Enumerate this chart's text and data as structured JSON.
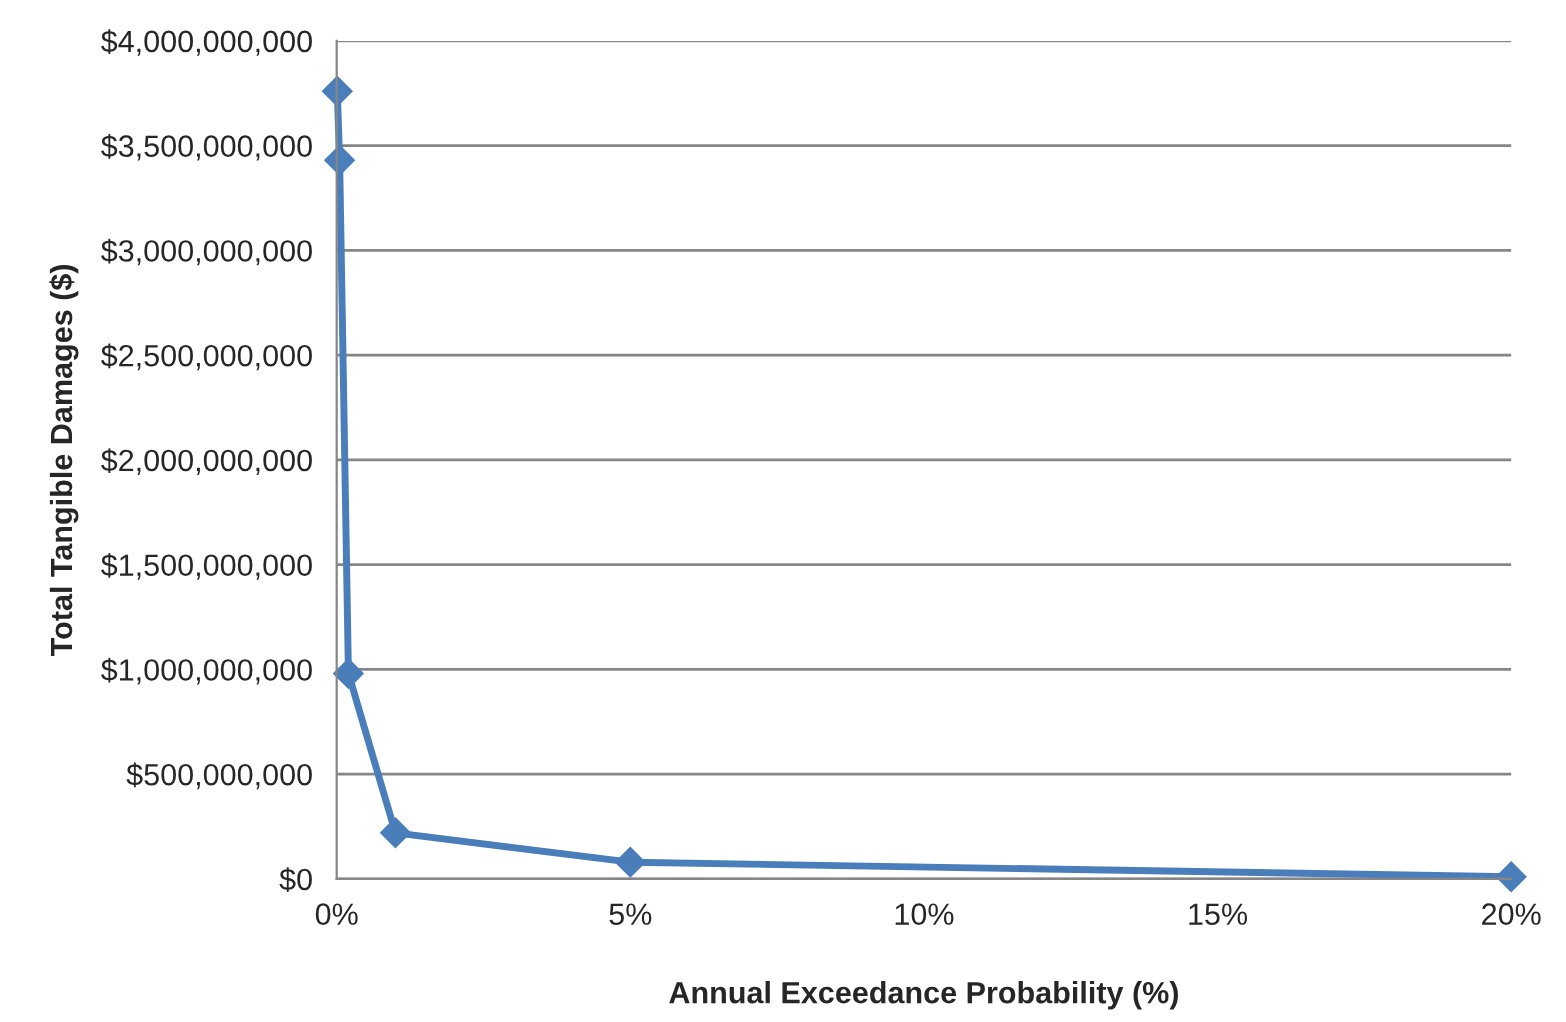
{
  "chart_data": {
    "type": "line",
    "xlabel": "Annual Exceedance Probability (%)",
    "ylabel": "Total Tangible Damages ($)",
    "x": [
      0.01,
      0.05,
      0.2,
      1,
      5,
      20
    ],
    "series": [
      {
        "color": "#4a7ebb",
        "values": [
          3760000000,
          3430000000,
          980000000,
          220000000,
          80000000,
          10000000
        ]
      }
    ],
    "xlim": [
      0,
      20
    ],
    "xticks": [
      {
        "value": 0,
        "label": "0%"
      },
      {
        "value": 5,
        "label": "5%"
      },
      {
        "value": 10,
        "label": "10%"
      },
      {
        "value": 15,
        "label": "15%"
      },
      {
        "value": 20,
        "label": "20%"
      }
    ],
    "ylim": [
      0,
      4000000000
    ],
    "yticks": [
      {
        "value": 0,
        "label": "$0"
      },
      {
        "value": 500000000,
        "label": "$500,000,000"
      },
      {
        "value": 1000000000,
        "label": "$1,000,000,000"
      },
      {
        "value": 1500000000,
        "label": "$1,500,000,000"
      },
      {
        "value": 2000000000,
        "label": "$2,000,000,000"
      },
      {
        "value": 2500000000,
        "label": "$2,500,000,000"
      },
      {
        "value": 3000000000,
        "label": "$3,000,000,000"
      },
      {
        "value": 3500000000,
        "label": "$3,500,000,000"
      },
      {
        "value": 4000000000,
        "label": "$4,000,000,000"
      }
    ],
    "grid": "y",
    "marker": "diamond",
    "line_style": "solid"
  }
}
